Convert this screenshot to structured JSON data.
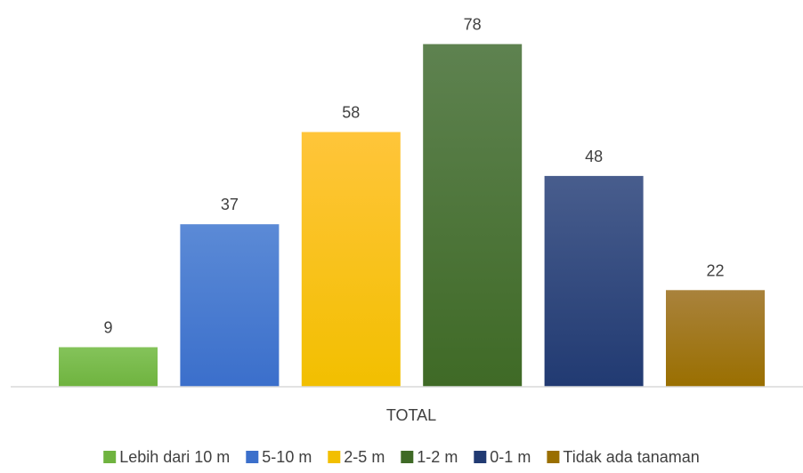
{
  "chart_data": {
    "type": "bar",
    "categories": [
      "TOTAL"
    ],
    "series": [
      {
        "name": "Lebih dari 10 m",
        "value": 9,
        "color": "#6fb33f",
        "color_top": "#84c35a"
      },
      {
        "name": "5-10 m",
        "value": 37,
        "color": "#3b6fcb",
        "color_top": "#5b8ad6"
      },
      {
        "name": "2-5 m",
        "value": 58,
        "color": "#f2bf00",
        "color_top": "#ffc53a"
      },
      {
        "name": "1-2 m",
        "value": 78,
        "color": "#3f6a26",
        "color_top": "#5e8250"
      },
      {
        "name": "0-1 m",
        "value": 48,
        "color": "#213a72",
        "color_top": "#485d8d"
      },
      {
        "name": "Tidak ada tanaman",
        "value": 22,
        "color": "#9a6f00",
        "color_top": "#a9823c"
      }
    ],
    "ylim": [
      0,
      84
    ],
    "grid": false,
    "legend_position": "bottom"
  }
}
